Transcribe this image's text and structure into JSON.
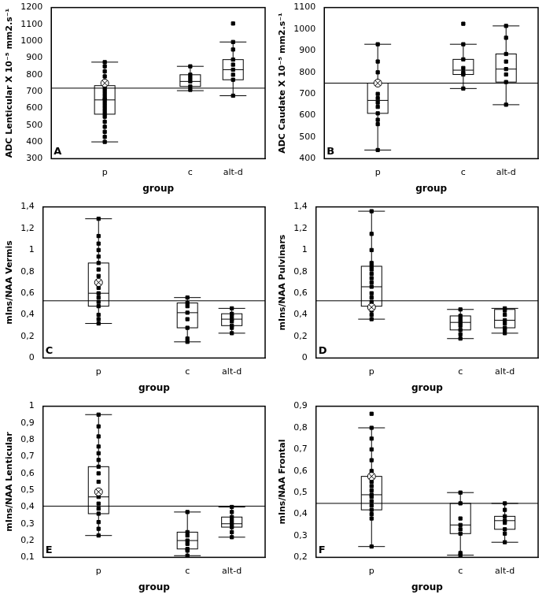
{
  "chart_data": [
    {
      "type": "box",
      "title": "A",
      "y_label": "ADC Lenticular X 10⁻⁵ mm2.s⁻¹",
      "x_label": "group",
      "categories": [
        "p",
        "c",
        "alt-d"
      ],
      "color": "#000000",
      "marker": "square",
      "grid": false,
      "ylim": [
        300,
        1200
      ],
      "yticks": [
        300,
        400,
        500,
        600,
        700,
        800,
        900,
        1000,
        1100,
        1200
      ],
      "threshold": 720,
      "boxes": [
        {
          "min": 400,
          "q1": 565,
          "median": 650,
          "q3": 735,
          "max": 875,
          "mean": 750
        },
        {
          "min": 705,
          "q1": 730,
          "median": 760,
          "q3": 800,
          "max": 850
        },
        {
          "min": 675,
          "q1": 770,
          "median": 830,
          "q3": 890,
          "max": 995
        }
      ],
      "points": [
        [
          400,
          430,
          460,
          490,
          520,
          550,
          570,
          590,
          610,
          630,
          650,
          660,
          680,
          700,
          720,
          740,
          760,
          790,
          820,
          850,
          875
        ],
        [
          710,
          730,
          760,
          780,
          800,
          850
        ],
        [
          675,
          770,
          800,
          830,
          860,
          890,
          950,
          995,
          1105
        ]
      ]
    },
    {
      "type": "box",
      "title": "B",
      "y_label": "ADC Caudate X 10⁻⁵ mm2.s⁻¹",
      "x_label": "group",
      "categories": [
        "p",
        "c",
        "alt-d"
      ],
      "color": "#000000",
      "marker": "square",
      "grid": false,
      "ylim": [
        400,
        1100
      ],
      "yticks": [
        400,
        500,
        600,
        700,
        800,
        900,
        1000,
        1100
      ],
      "threshold": 750,
      "boxes": [
        {
          "min": 440,
          "q1": 610,
          "median": 670,
          "q3": 750,
          "max": 930,
          "mean": 750
        },
        {
          "min": 725,
          "q1": 790,
          "median": 810,
          "q3": 860,
          "max": 930
        },
        {
          "min": 650,
          "q1": 755,
          "median": 815,
          "q3": 885,
          "max": 1015
        }
      ],
      "points": [
        [
          440,
          560,
          580,
          610,
          640,
          660,
          680,
          700,
          750,
          800,
          850,
          930
        ],
        [
          725,
          790,
          800,
          820,
          860,
          930,
          1025
        ],
        [
          650,
          755,
          790,
          815,
          850,
          885,
          960,
          1015
        ]
      ]
    },
    {
      "type": "box",
      "title": "C",
      "y_label": "mIns/NAA Vermis",
      "x_label": "group",
      "categories": [
        "p",
        "c",
        "alt-d"
      ],
      "color": "#000000",
      "marker": "square",
      "grid": false,
      "ylim": [
        0,
        1.4
      ],
      "yticks": [
        0,
        {
          "value": 0.2,
          "label": "0,2"
        },
        {
          "value": 0.4,
          "label": "0,4"
        },
        {
          "value": 0.6,
          "label": "0,6"
        },
        {
          "value": 0.8,
          "label": "0,8"
        },
        1,
        {
          "value": 1.2,
          "label": "1,2"
        },
        {
          "value": 1.4,
          "label": "1,4"
        }
      ],
      "threshold": 0.53,
      "boxes": [
        {
          "min": 0.32,
          "q1": 0.48,
          "median": 0.6,
          "q3": 0.88,
          "max": 1.29,
          "mean": 0.7
        },
        {
          "min": 0.15,
          "q1": 0.28,
          "median": 0.42,
          "q3": 0.51,
          "max": 0.56
        },
        {
          "min": 0.23,
          "q1": 0.3,
          "median": 0.36,
          "q3": 0.41,
          "max": 0.46
        }
      ],
      "points": [
        [
          0.32,
          0.36,
          0.4,
          0.48,
          0.52,
          0.56,
          0.6,
          0.65,
          0.7,
          0.76,
          0.82,
          0.88,
          0.94,
          1.0,
          1.06,
          1.13,
          1.29
        ],
        [
          0.15,
          0.18,
          0.28,
          0.36,
          0.42,
          0.48,
          0.51,
          0.56
        ],
        [
          0.23,
          0.28,
          0.3,
          0.34,
          0.36,
          0.39,
          0.41,
          0.46
        ]
      ]
    },
    {
      "type": "box",
      "title": "D",
      "y_label": "mIns/NAA Pulvinars",
      "x_label": "group",
      "categories": [
        "p",
        "c",
        "alt-d"
      ],
      "color": "#000000",
      "marker": "square",
      "grid": false,
      "ylim": [
        0,
        1.4
      ],
      "yticks": [
        0,
        {
          "value": 0.2,
          "label": "0,2"
        },
        {
          "value": 0.4,
          "label": "0,4"
        },
        {
          "value": 0.6,
          "label": "0,6"
        },
        {
          "value": 0.8,
          "label": "0,8"
        },
        1,
        {
          "value": 1.2,
          "label": "1,2"
        },
        {
          "value": 1.4,
          "label": "1,4"
        }
      ],
      "threshold": 0.53,
      "boxes": [
        {
          "min": 0.36,
          "q1": 0.48,
          "median": 0.66,
          "q3": 0.85,
          "max": 1.36,
          "mean": 0.47
        },
        {
          "min": 0.18,
          "q1": 0.26,
          "median": 0.33,
          "q3": 0.39,
          "max": 0.45
        },
        {
          "min": 0.23,
          "q1": 0.28,
          "median": 0.35,
          "q3": 0.45,
          "max": 0.46
        }
      ],
      "points": [
        [
          0.36,
          0.4,
          0.44,
          0.48,
          0.52,
          0.56,
          0.6,
          0.66,
          0.7,
          0.74,
          0.78,
          0.82,
          0.85,
          0.88,
          1.0,
          1.15,
          1.36
        ],
        [
          0.18,
          0.22,
          0.26,
          0.3,
          0.33,
          0.36,
          0.39,
          0.45
        ],
        [
          0.23,
          0.26,
          0.28,
          0.32,
          0.35,
          0.4,
          0.44,
          0.46
        ]
      ]
    },
    {
      "type": "box",
      "title": "E",
      "y_label": "mIns/NAA Lenticular",
      "x_label": "group",
      "categories": [
        "p",
        "c",
        "alt-d"
      ],
      "color": "#000000",
      "marker": "square",
      "grid": false,
      "ylim": [
        0.1,
        1
      ],
      "yticks": [
        {
          "value": 0.1,
          "label": "0,1"
        },
        {
          "value": 0.2,
          "label": "0,2"
        },
        {
          "value": 0.3,
          "label": "0,3"
        },
        {
          "value": 0.4,
          "label": "0,4"
        },
        {
          "value": 0.5,
          "label": "0,5"
        },
        {
          "value": 0.6,
          "label": "0,6"
        },
        {
          "value": 0.7,
          "label": "0,7"
        },
        {
          "value": 0.8,
          "label": "0,8"
        },
        {
          "value": 0.9,
          "label": "0,9"
        },
        1
      ],
      "threshold": 0.405,
      "boxes": [
        {
          "min": 0.23,
          "q1": 0.36,
          "median": 0.46,
          "q3": 0.64,
          "max": 0.95,
          "mean": 0.49
        },
        {
          "min": 0.11,
          "q1": 0.15,
          "median": 0.2,
          "q3": 0.25,
          "max": 0.37
        },
        {
          "min": 0.22,
          "q1": 0.28,
          "median": 0.3,
          "q3": 0.34,
          "max": 0.4
        }
      ],
      "points": [
        [
          0.23,
          0.27,
          0.31,
          0.36,
          0.39,
          0.42,
          0.46,
          0.5,
          0.55,
          0.6,
          0.64,
          0.68,
          0.72,
          0.76,
          0.82,
          0.88,
          0.95
        ],
        [
          0.11,
          0.14,
          0.15,
          0.18,
          0.2,
          0.23,
          0.25,
          0.37
        ],
        [
          0.22,
          0.25,
          0.28,
          0.3,
          0.32,
          0.34,
          0.37,
          0.4
        ]
      ]
    },
    {
      "type": "box",
      "title": "F",
      "y_label": "mIns/NAA Frontal",
      "x_label": "group",
      "categories": [
        "p",
        "c",
        "alt-d"
      ],
      "color": "#000000",
      "marker": "square",
      "grid": false,
      "ylim": [
        0.2,
        0.9
      ],
      "yticks": [
        {
          "value": 0.2,
          "label": "0,2"
        },
        {
          "value": 0.3,
          "label": "0,3"
        },
        {
          "value": 0.4,
          "label": "0,4"
        },
        {
          "value": 0.5,
          "label": "0,5"
        },
        {
          "value": 0.6,
          "label": "0,6"
        },
        {
          "value": 0.7,
          "label": "0,7"
        },
        {
          "value": 0.8,
          "label": "0,8"
        },
        {
          "value": 0.9,
          "label": "0,9"
        }
      ],
      "threshold": 0.45,
      "boxes": [
        {
          "min": 0.25,
          "q1": 0.42,
          "median": 0.49,
          "q3": 0.575,
          "max": 0.8,
          "mean": 0.575
        },
        {
          "min": 0.21,
          "q1": 0.31,
          "median": 0.35,
          "q3": 0.45,
          "max": 0.5
        },
        {
          "min": 0.27,
          "q1": 0.33,
          "median": 0.37,
          "q3": 0.39,
          "max": 0.45
        }
      ],
      "points": [
        [
          0.25,
          0.38,
          0.4,
          0.42,
          0.44,
          0.46,
          0.48,
          0.49,
          0.51,
          0.53,
          0.55,
          0.575,
          0.6,
          0.65,
          0.7,
          0.75,
          0.8,
          0.865
        ],
        [
          0.21,
          0.22,
          0.31,
          0.33,
          0.35,
          0.38,
          0.45,
          0.5
        ],
        [
          0.27,
          0.31,
          0.33,
          0.36,
          0.37,
          0.39,
          0.42,
          0.45
        ]
      ]
    }
  ]
}
